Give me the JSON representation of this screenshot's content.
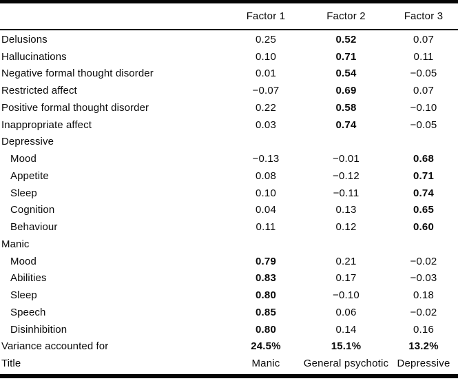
{
  "page": {
    "background_color": "#ffffff",
    "text_color": "#0a0a0a",
    "rule_color": "#050505"
  },
  "table": {
    "column_headers": [
      "Factor 1",
      "Factor 2",
      "Factor 3"
    ],
    "rows": [
      {
        "label": "Delusions",
        "indent": false,
        "section": false,
        "values": [
          "0.25",
          "0.52",
          "0.07"
        ],
        "bold": [
          false,
          true,
          false
        ]
      },
      {
        "label": "Hallucinations",
        "indent": false,
        "section": false,
        "values": [
          "0.10",
          "0.71",
          "0.11"
        ],
        "bold": [
          false,
          true,
          false
        ]
      },
      {
        "label": "Negative formal thought disorder",
        "indent": false,
        "section": false,
        "values": [
          "0.01",
          "0.54",
          "−0.05"
        ],
        "bold": [
          false,
          true,
          false
        ]
      },
      {
        "label": "Restricted affect",
        "indent": false,
        "section": false,
        "values": [
          "−0.07",
          "0.69",
          "0.07"
        ],
        "bold": [
          false,
          true,
          false
        ]
      },
      {
        "label": "Positive formal thought disorder",
        "indent": false,
        "section": false,
        "values": [
          "0.22",
          "0.58",
          "−0.10"
        ],
        "bold": [
          false,
          true,
          false
        ]
      },
      {
        "label": "Inappropriate affect",
        "indent": false,
        "section": false,
        "values": [
          "0.03",
          "0.74",
          "−0.05"
        ],
        "bold": [
          false,
          true,
          false
        ]
      },
      {
        "label": "Depressive",
        "indent": false,
        "section": true,
        "values": [
          "",
          "",
          ""
        ],
        "bold": [
          false,
          false,
          false
        ]
      },
      {
        "label": "Mood",
        "indent": true,
        "section": false,
        "values": [
          "−0.13",
          "−0.01",
          "0.68"
        ],
        "bold": [
          false,
          false,
          true
        ]
      },
      {
        "label": "Appetite",
        "indent": true,
        "section": false,
        "values": [
          "0.08",
          "−0.12",
          "0.71"
        ],
        "bold": [
          false,
          false,
          true
        ]
      },
      {
        "label": "Sleep",
        "indent": true,
        "section": false,
        "values": [
          "0.10",
          "−0.11",
          "0.74"
        ],
        "bold": [
          false,
          false,
          true
        ]
      },
      {
        "label": "Cognition",
        "indent": true,
        "section": false,
        "values": [
          "0.04",
          "0.13",
          "0.65"
        ],
        "bold": [
          false,
          false,
          true
        ]
      },
      {
        "label": "Behaviour",
        "indent": true,
        "section": false,
        "values": [
          "0.11",
          "0.12",
          "0.60"
        ],
        "bold": [
          false,
          false,
          true
        ]
      },
      {
        "label": "Manic",
        "indent": false,
        "section": true,
        "values": [
          "",
          "",
          ""
        ],
        "bold": [
          false,
          false,
          false
        ]
      },
      {
        "label": "Mood",
        "indent": true,
        "section": false,
        "values": [
          "0.79",
          "0.21",
          "−0.02"
        ],
        "bold": [
          true,
          false,
          false
        ]
      },
      {
        "label": "Abilities",
        "indent": true,
        "section": false,
        "values": [
          "0.83",
          "0.17",
          "−0.03"
        ],
        "bold": [
          true,
          false,
          false
        ]
      },
      {
        "label": "Sleep",
        "indent": true,
        "section": false,
        "values": [
          "0.80",
          "−0.10",
          "0.18"
        ],
        "bold": [
          true,
          false,
          false
        ]
      },
      {
        "label": "Speech",
        "indent": true,
        "section": false,
        "values": [
          "0.85",
          "0.06",
          "−0.02"
        ],
        "bold": [
          true,
          false,
          false
        ]
      },
      {
        "label": "Disinhibition",
        "indent": true,
        "section": false,
        "values": [
          "0.80",
          "0.14",
          "0.16"
        ],
        "bold": [
          true,
          false,
          false
        ]
      },
      {
        "label": "Variance accounted for",
        "indent": false,
        "section": false,
        "values": [
          "24.5%",
          "15.1%",
          "13.2%"
        ],
        "bold": [
          true,
          true,
          true
        ]
      },
      {
        "label": "Title",
        "indent": false,
        "section": false,
        "values": [
          "Manic",
          "General psychotic",
          "Depressive"
        ],
        "bold": [
          false,
          false,
          false
        ]
      }
    ]
  }
}
